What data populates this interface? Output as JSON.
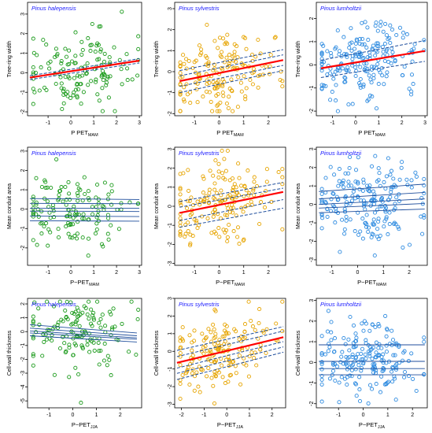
{
  "figure": {
    "colors": {
      "frame": "#000000",
      "regression": "#ff0000",
      "fit": "#1f4e9c"
    }
  },
  "chart_data": [
    {
      "type": "scatter",
      "title": "Pinus halepensis",
      "xlabel_main": "P   PET",
      "xlabel_sub": "MAM",
      "ylabel": "Tree-ring width",
      "xlim": [
        -1.9,
        3.1
      ],
      "ylim": [
        -2.2,
        3.6
      ],
      "xticks": [
        -1,
        0,
        1,
        2,
        3
      ],
      "yticks": [
        -2,
        -1,
        0,
        1,
        2,
        3
      ],
      "point_color": "#1a9a1a",
      "regression": [
        [
          -1.8,
          -0.25
        ],
        [
          3.0,
          0.62
        ]
      ],
      "bands": [
        [
          [
            -1.8,
            -0.35
          ],
          [
            3.0,
            0.5
          ]
        ],
        [
          [
            -1.8,
            -0.15
          ],
          [
            3.0,
            0.72
          ]
        ]
      ],
      "lines": []
    },
    {
      "type": "scatter",
      "title": "Pinus sylvestris",
      "xlabel_main": "P   PET",
      "xlabel_sub": "MAM",
      "ylabel": "Tree-ring width",
      "xlim": [
        -1.8,
        2.7
      ],
      "ylim": [
        -2.1,
        3.3
      ],
      "xticks": [
        -1,
        0,
        1,
        2
      ],
      "yticks": [
        -2,
        -1,
        0,
        1,
        2,
        3
      ],
      "point_color": "#e6a400",
      "regression": [
        [
          -1.6,
          -0.45
        ],
        [
          2.6,
          0.55
        ]
      ],
      "bands": [
        [
          [
            -1.6,
            -0.7
          ],
          [
            2.6,
            0.3
          ]
        ],
        [
          [
            -1.6,
            -0.2
          ],
          [
            2.6,
            0.8
          ]
        ],
        [
          [
            -1.6,
            -1.0
          ],
          [
            2.6,
            0.05
          ]
        ],
        [
          [
            -1.6,
            0.05
          ],
          [
            2.6,
            1.05
          ]
        ]
      ],
      "lines": []
    },
    {
      "type": "scatter",
      "title": "Pinus lumholtzii",
      "xlabel_main": "P   PET",
      "xlabel_sub": "MAM",
      "ylabel": "Tree-ring width",
      "xlim": [
        -1.7,
        3.1
      ],
      "ylim": [
        -2.2,
        2.7
      ],
      "xticks": [
        -1,
        0,
        1,
        2,
        3
      ],
      "yticks": [
        -2,
        -1,
        0,
        1,
        2
      ],
      "point_color": "#2e8be0",
      "regression": [
        [
          -1.5,
          -0.15
        ],
        [
          3.0,
          0.6
        ]
      ],
      "bands": [
        [
          [
            -1.5,
            0.2
          ],
          [
            3.0,
            1.05
          ]
        ],
        [
          [
            -1.5,
            -0.55
          ],
          [
            3.0,
            0.15
          ]
        ]
      ],
      "lines": []
    },
    {
      "type": "scatter",
      "title": "Pinus halepensis",
      "xlabel_main": "P−PET",
      "xlabel_sub": "MAM",
      "ylabel": "Mean conduit area",
      "xlim": [
        -1.9,
        3.1
      ],
      "ylim": [
        -2.9,
        3.2
      ],
      "xticks": [
        -1,
        0,
        1,
        2,
        3
      ],
      "yticks": [
        -2,
        -1,
        0,
        1,
        2,
        3
      ],
      "point_color": "#1a9a1a",
      "regression": null,
      "bands": [],
      "lines": [
        [
          [
            -1.8,
            0.55
          ],
          [
            3.0,
            0.5
          ]
        ],
        [
          [
            -1.8,
            0.3
          ],
          [
            3.0,
            0.28
          ]
        ],
        [
          [
            -1.8,
            0.05
          ],
          [
            3.0,
            0.05
          ]
        ],
        [
          [
            -1.8,
            -0.1
          ],
          [
            3.0,
            -0.12
          ]
        ],
        [
          [
            -1.8,
            -0.35
          ],
          [
            3.0,
            -0.38
          ]
        ],
        [
          [
            -1.8,
            -0.6
          ],
          [
            3.0,
            -0.62
          ]
        ]
      ]
    },
    {
      "type": "scatter",
      "title": "Pinus sylvestris",
      "xlabel_main": "P−PET",
      "xlabel_sub": "MAM",
      "ylabel": "Mean conduit area",
      "xlim": [
        -1.8,
        2.7
      ],
      "ylim": [
        -3.1,
        3.1
      ],
      "xticks": [
        -1,
        0,
        1,
        2
      ],
      "yticks": [
        -3,
        -2,
        -1,
        0,
        1,
        2,
        3
      ],
      "point_color": "#e6a400",
      "regression": [
        [
          -1.6,
          -0.35
        ],
        [
          2.6,
          0.75
        ]
      ],
      "bands": [
        [
          [
            -1.6,
            0.25
          ],
          [
            2.6,
            1.25
          ]
        ],
        [
          [
            -1.6,
            -0.05
          ],
          [
            2.6,
            0.95
          ]
        ],
        [
          [
            -1.6,
            -1.1
          ],
          [
            2.6,
            -0.1
          ]
        ],
        [
          [
            -1.6,
            -0.75
          ],
          [
            2.6,
            0.35
          ]
        ]
      ],
      "lines": []
    },
    {
      "type": "scatter",
      "title": "Pinus lumholtzii",
      "xlabel_main": "P−PET",
      "xlabel_sub": "MAM",
      "ylabel": "Mean conduit area",
      "xlim": [
        -1.6,
        2.7
      ],
      "ylim": [
        -3.3,
        3.1
      ],
      "xticks": [
        -1,
        0,
        1,
        2
      ],
      "yticks": [
        -3,
        -2,
        -1,
        0,
        1,
        2,
        3
      ],
      "point_color": "#2e8be0",
      "regression": null,
      "bands": [],
      "lines": [
        [
          [
            -1.5,
            0.7
          ],
          [
            2.6,
            1.1
          ]
        ],
        [
          [
            -1.5,
            0.3
          ],
          [
            2.6,
            0.65
          ]
        ],
        [
          [
            -1.5,
            0.0
          ],
          [
            2.6,
            0.3
          ]
        ],
        [
          [
            -1.5,
            -0.2
          ],
          [
            2.6,
            0.05
          ]
        ],
        [
          [
            -1.5,
            -0.45
          ],
          [
            2.6,
            -0.25
          ]
        ]
      ]
    },
    {
      "type": "scatter",
      "title": "Pinus halepensis",
      "xlabel_main": "P−PET",
      "xlabel_sub": "JJA",
      "ylabel": "Cell-wall thickness",
      "xlim": [
        -1.9,
        2.9
      ],
      "ylim": [
        -5.5,
        2.4
      ],
      "xticks": [
        -1,
        0,
        1,
        2
      ],
      "yticks": [
        -5,
        -4,
        -3,
        -2,
        -1,
        0,
        1,
        2
      ],
      "point_color": "#1a9a1a",
      "regression": null,
      "bands": [],
      "lines": [
        [
          [
            -1.8,
            0.5
          ],
          [
            2.7,
            -0.1
          ]
        ],
        [
          [
            -1.8,
            0.25
          ],
          [
            2.7,
            -0.3
          ]
        ],
        [
          [
            -1.8,
            0.05
          ],
          [
            2.7,
            -0.45
          ]
        ],
        [
          [
            -1.8,
            -0.1
          ],
          [
            2.7,
            -0.55
          ]
        ],
        [
          [
            -1.8,
            -0.3
          ],
          [
            2.7,
            -0.75
          ]
        ]
      ]
    },
    {
      "type": "scatter",
      "title": "Pinus sylvestris",
      "xlabel_main": "P−PET",
      "xlabel_sub": "JJA",
      "ylabel": "Cell-wall thickness",
      "xlim": [
        -2.3,
        2.6
      ],
      "ylim": [
        -3.2,
        3.0
      ],
      "xticks": [
        -2,
        -1,
        0,
        1,
        2
      ],
      "yticks": [
        -3,
        -2,
        -1,
        0,
        1,
        2,
        3
      ],
      "point_color": "#e6a400",
      "regression": [
        [
          -2.2,
          -0.65
        ],
        [
          2.5,
          0.8
        ]
      ],
      "bands": [
        [
          [
            -2.2,
            -0.3
          ],
          [
            2.5,
            1.15
          ]
        ],
        [
          [
            -2.2,
            -0.95
          ],
          [
            2.5,
            0.55
          ]
        ],
        [
          [
            -2.2,
            -1.25
          ],
          [
            2.5,
            0.25
          ]
        ],
        [
          [
            -2.2,
            -1.6
          ],
          [
            2.5,
            -0.05
          ]
        ],
        [
          [
            -2.2,
            0.05
          ],
          [
            2.5,
            1.4
          ]
        ]
      ],
      "lines": []
    },
    {
      "type": "scatter",
      "title": "Pinus lumholtzii",
      "xlabel_main": "P−PET",
      "xlabel_sub": "JJA",
      "ylabel": "Cell-wall thickness",
      "xlim": [
        -1.9,
        2.6
      ],
      "ylim": [
        -2.2,
        3.1
      ],
      "xticks": [
        -1,
        0,
        1,
        2
      ],
      "yticks": [
        -2,
        -1,
        0,
        1,
        2,
        3
      ],
      "point_color": "#2e8be0",
      "regression": null,
      "bands": [],
      "lines": [
        [
          [
            -1.8,
            0.85
          ],
          [
            2.5,
            0.85
          ]
        ],
        [
          [
            -1.8,
            0.05
          ],
          [
            2.5,
            0.05
          ]
        ],
        [
          [
            -1.8,
            -0.3
          ],
          [
            2.5,
            -0.3
          ]
        ],
        [
          [
            -1.8,
            -0.6
          ],
          [
            2.5,
            -0.6
          ]
        ]
      ]
    }
  ]
}
